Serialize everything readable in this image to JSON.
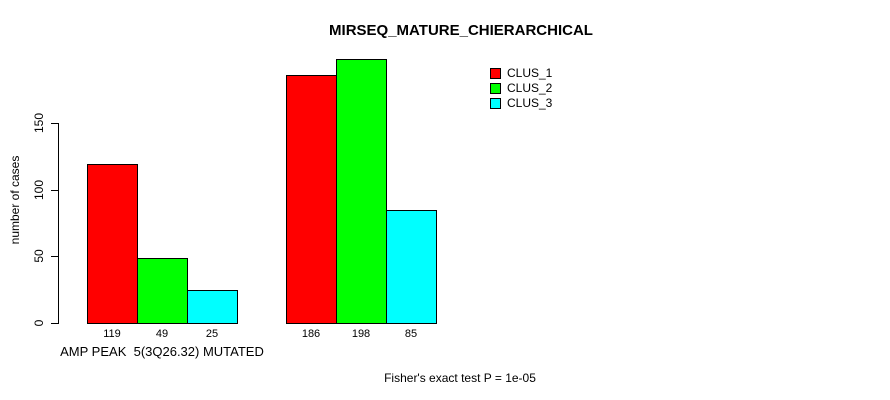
{
  "chart_data": {
    "type": "bar",
    "title": "MIRSEQ_MATURE_CHIERARCHICAL",
    "ylabel": "number of cases",
    "xlabel": "",
    "yticks": [
      0,
      50,
      100,
      150
    ],
    "ylim": [
      0,
      150
    ],
    "grid": false,
    "legend_position": "top-right",
    "categories": [
      "AMP PEAK  5(3Q26.32) MUTATED",
      ""
    ],
    "series": [
      {
        "name": "CLUS_1",
        "color": "#ff0000",
        "values": [
          119,
          186
        ]
      },
      {
        "name": "CLUS_2",
        "color": "#00ff00",
        "values": [
          49,
          198
        ]
      },
      {
        "name": "CLUS_3",
        "color": "#00ffff",
        "values": [
          25,
          85
        ]
      }
    ],
    "value_labels": [
      [
        119,
        49,
        25
      ],
      [
        186,
        198,
        85
      ]
    ],
    "footnote": "Fisher's exact test P = 1e-05",
    "background_color": "#ffffff",
    "bar_border_color": "#000000"
  }
}
